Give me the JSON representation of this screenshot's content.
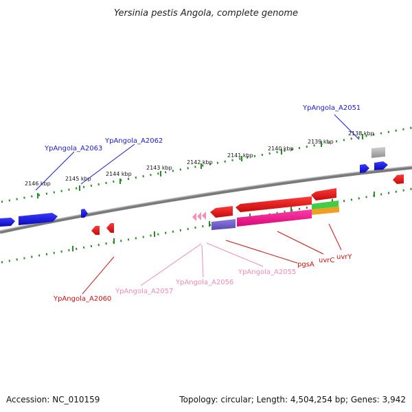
{
  "title": "Yersinia pestis Angola, complete genome",
  "accession": "Accession: NC_010159",
  "summary": "Topology: circular; Length: 4,504,254 bp; Genes: 3,942",
  "ticks": [
    "2146 kbp",
    "2145 kbp",
    "2144 kbp",
    "2143 kbp",
    "2142 kbp",
    "2141 kbp",
    "2140 kbp",
    "2139 kbp",
    "2138 kbp"
  ],
  "labels": [
    {
      "id": "YpAngola_A2051",
      "text": "YpAngola_A2051",
      "color": "#1a1acc"
    },
    {
      "id": "YpAngola_A2062",
      "text": "YpAngola_A2062",
      "color": "#1a1acc"
    },
    {
      "id": "YpAngola_A2063",
      "text": "YpAngola_A2063",
      "color": "#1a1acc"
    },
    {
      "id": "YpAngola_A2060",
      "text": "YpAngola_A2060",
      "color": "#cc1111"
    },
    {
      "id": "YpAngola_A2057",
      "text": "YpAngola_A2057",
      "color": "#f08bb3"
    },
    {
      "id": "YpAngola_A2056",
      "text": "YpAngola_A2056",
      "color": "#f08bb3"
    },
    {
      "id": "YpAngola_A2055",
      "text": "YpAngola_A2055",
      "color": "#f08bb3"
    },
    {
      "id": "pgsA",
      "text": "pgsA",
      "color": "#cc1111"
    },
    {
      "id": "uvrC",
      "text": "uvrC",
      "color": "#cc1111"
    },
    {
      "id": "uvrY",
      "text": "uvrY",
      "color": "#cc1111"
    }
  ],
  "colors": {
    "forward_gene": "#1010ee",
    "reverse_gene": "#ee1111",
    "trna": "#f48fb8",
    "backbone": "#8a8a8a",
    "gc_ticks": "#2a8a2a",
    "pink_band": "#e8118a",
    "purple_band": "#7060c8",
    "green_band": "#44cc44",
    "orange_band": "#f0a020",
    "grey_gene": "#b0b0b0"
  }
}
